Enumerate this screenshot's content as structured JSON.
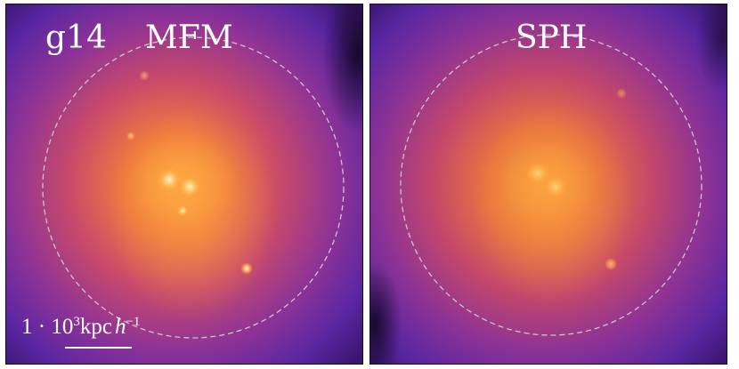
{
  "panels": [
    {
      "id": "left",
      "labels": [
        "g14",
        "MFM"
      ]
    },
    {
      "id": "right",
      "labels": [
        "SPH"
      ]
    }
  ],
  "scale_bar": {
    "prefix": "1 · 10",
    "exponent": "3",
    "unit": "kpc",
    "h_symbol": "h",
    "h_exponent": "−1"
  },
  "colors": {
    "background_dark": "#2a0c5e",
    "background_mid": "#5e27a6",
    "core": "#f9a23f",
    "highlight": "#fff3c0",
    "circle": "#c8c8c8",
    "text": "#ffffff"
  }
}
